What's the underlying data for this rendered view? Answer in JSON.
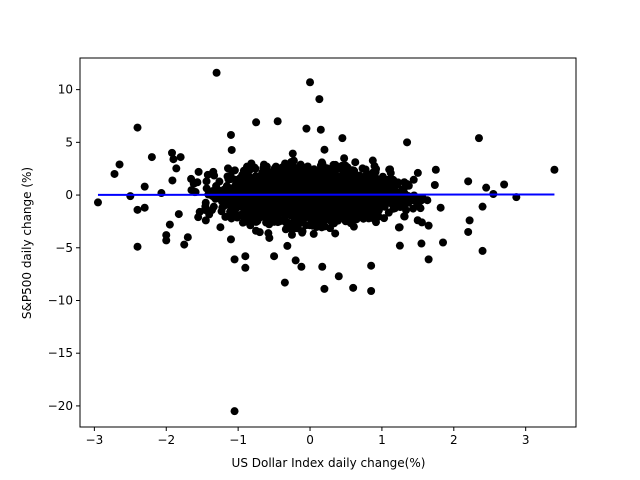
{
  "chart_data": {
    "type": "scatter",
    "title": "",
    "xlabel": "US Dollar Index daily change(%)",
    "ylabel": "S&P500 daily change (%)",
    "xlim": [
      -3.2,
      3.7
    ],
    "ylim": [
      -22.0,
      13.0
    ],
    "xticks": [
      -3,
      -2,
      -1,
      0,
      1,
      2,
      3
    ],
    "yticks": [
      -20,
      -15,
      -10,
      -5,
      0,
      5,
      10
    ],
    "xtick_labels": [
      "−3",
      "−2",
      "−1",
      "0",
      "1",
      "2",
      "3"
    ],
    "ytick_labels": [
      "−20",
      "−15",
      "−10",
      "−5",
      "0",
      "5",
      "10"
    ],
    "grid": false,
    "legend": "none",
    "marker_color": "#000000",
    "fit_line_color": "#0000ff",
    "cluster_spread": {
      "x_sd": 0.55,
      "y_sd": 1.2
    },
    "points": [
      [
        -1.3,
        11.6
      ],
      [
        0.0,
        10.7
      ],
      [
        0.13,
        9.1
      ],
      [
        -2.4,
        6.4
      ],
      [
        -0.75,
        6.9
      ],
      [
        -0.45,
        7.0
      ],
      [
        -1.1,
        5.7
      ],
      [
        -0.05,
        6.3
      ],
      [
        0.15,
        6.2
      ],
      [
        2.35,
        5.4
      ],
      [
        0.45,
        5.4
      ],
      [
        1.35,
        5.0
      ],
      [
        -2.65,
        2.9
      ],
      [
        -2.72,
        2.0
      ],
      [
        -2.2,
        3.6
      ],
      [
        -1.9,
        3.4
      ],
      [
        -1.8,
        3.6
      ],
      [
        -1.92,
        4.0
      ],
      [
        3.4,
        2.4
      ],
      [
        2.7,
        1.0
      ],
      [
        2.45,
        0.7
      ],
      [
        2.2,
        1.3
      ],
      [
        2.87,
        -0.2
      ],
      [
        2.55,
        0.1
      ],
      [
        -2.95,
        -0.7
      ],
      [
        -2.5,
        -0.1
      ],
      [
        -2.4,
        -1.4
      ],
      [
        -2.3,
        -1.2
      ],
      [
        -2.4,
        -4.9
      ],
      [
        -2.0,
        -3.8
      ],
      [
        -1.95,
        -2.8
      ],
      [
        -2.0,
        -4.3
      ],
      [
        -1.75,
        -4.7
      ],
      [
        -1.7,
        -4.0
      ],
      [
        -1.1,
        -4.2
      ],
      [
        -1.05,
        -6.1
      ],
      [
        -0.9,
        -5.8
      ],
      [
        -0.9,
        -6.9
      ],
      [
        -0.5,
        -5.8
      ],
      [
        -0.35,
        -8.3
      ],
      [
        -0.2,
        -6.2
      ],
      [
        -0.12,
        -6.8
      ],
      [
        0.17,
        -6.8
      ],
      [
        0.2,
        -8.9
      ],
      [
        0.4,
        -7.7
      ],
      [
        0.6,
        -8.8
      ],
      [
        0.85,
        -9.1
      ],
      [
        0.85,
        -6.7
      ],
      [
        1.25,
        -4.8
      ],
      [
        1.55,
        -4.6
      ],
      [
        1.65,
        -6.1
      ],
      [
        1.85,
        -4.5
      ],
      [
        2.2,
        -3.5
      ],
      [
        2.22,
        -2.4
      ],
      [
        2.4,
        -5.3
      ],
      [
        2.4,
        -1.1
      ],
      [
        -1.05,
        -20.5
      ],
      [
        1.5,
        2.1
      ],
      [
        1.75,
        2.4
      ],
      [
        1.65,
        -2.9
      ],
      [
        -2.3,
        0.8
      ],
      [
        -1.55,
        2.2
      ],
      [
        -1.45,
        -2.4
      ]
    ],
    "fit_line": {
      "x": [
        -2.95,
        3.4
      ],
      "y": [
        0.02,
        0.05
      ]
    }
  }
}
